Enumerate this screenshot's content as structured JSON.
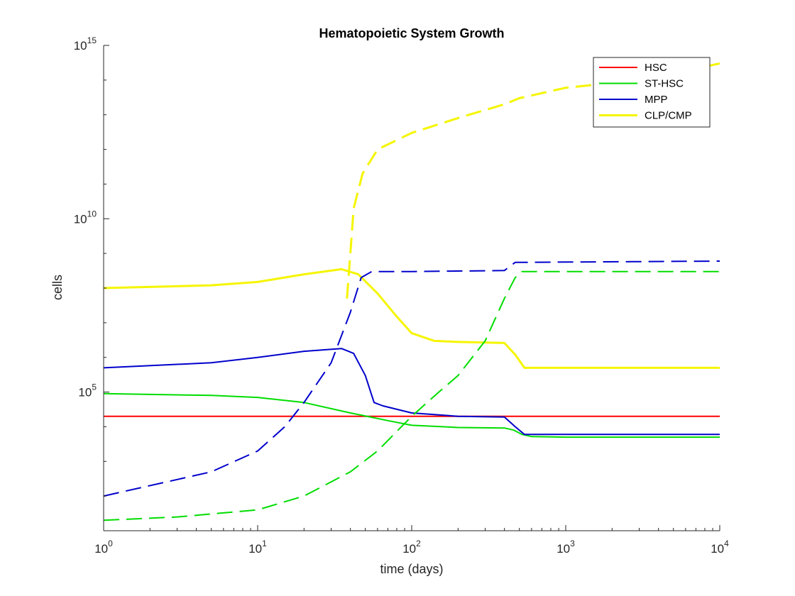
{
  "chart_data": {
    "type": "line",
    "title": "Hematopoietic System Growth",
    "xlabel": "time (days)",
    "ylabel": "cells",
    "xscale": "log",
    "yscale": "log",
    "xlim": [
      1,
      10000
    ],
    "ylim": [
      10,
      1000000000000000
    ],
    "x_ticks": [
      {
        "base": "10",
        "exp": "0",
        "value": 1
      },
      {
        "base": "10",
        "exp": "1",
        "value": 10
      },
      {
        "base": "10",
        "exp": "2",
        "value": 100
      },
      {
        "base": "10",
        "exp": "3",
        "value": 1000
      },
      {
        "base": "10",
        "exp": "4",
        "value": 10000
      }
    ],
    "y_ticks": [
      {
        "base": "10",
        "exp": "5",
        "value": 100000
      },
      {
        "base": "10",
        "exp": "10",
        "value": 10000000000
      },
      {
        "base": "10",
        "exp": "15",
        "value": 1000000000000000
      }
    ],
    "grid": false,
    "legend_position": "top-right",
    "legend": [
      {
        "label": "HSC",
        "color": "#ff0000"
      },
      {
        "label": "ST-HSC",
        "color": "#00dd00"
      },
      {
        "label": "MPP",
        "color": "#0000cc"
      },
      {
        "label": "CLP/CMP",
        "color": "#f5f500"
      }
    ],
    "series": [
      {
        "name": "HSC",
        "color": "#ff0000",
        "style": "solid",
        "points": [
          [
            1,
            20000
          ],
          [
            10000,
            20000
          ]
        ]
      },
      {
        "name": "ST-HSC",
        "color": "#00dd00",
        "style": "solid",
        "points": [
          [
            1,
            90000
          ],
          [
            5,
            80000
          ],
          [
            10,
            70000
          ],
          [
            20,
            50000
          ],
          [
            40,
            25000
          ],
          [
            70,
            15000
          ],
          [
            100,
            11000
          ],
          [
            200,
            9500
          ],
          [
            400,
            9200
          ],
          [
            460,
            8000
          ],
          [
            520,
            6000
          ],
          [
            600,
            5200
          ],
          [
            1000,
            5000
          ],
          [
            10000,
            5000
          ]
        ]
      },
      {
        "name": "MPP",
        "color": "#0000cc",
        "style": "solid",
        "points": [
          [
            1,
            500000
          ],
          [
            5,
            700000
          ],
          [
            10,
            1000000
          ],
          [
            20,
            1500000
          ],
          [
            35,
            1800000
          ],
          [
            42,
            1300000
          ],
          [
            50,
            300000
          ],
          [
            57,
            50000
          ],
          [
            65,
            40000
          ],
          [
            100,
            25000
          ],
          [
            200,
            20000
          ],
          [
            400,
            19000
          ],
          [
            470,
            10000
          ],
          [
            540,
            6000
          ],
          [
            1000,
            6000
          ],
          [
            10000,
            6000
          ]
        ]
      },
      {
        "name": "CLP/CMP",
        "color": "#f5f500",
        "style": "solid",
        "points": [
          [
            1,
            100000000
          ],
          [
            5,
            120000000
          ],
          [
            10,
            150000000
          ],
          [
            20,
            250000000
          ],
          [
            35,
            350000000
          ],
          [
            45,
            250000000
          ],
          [
            60,
            70000000
          ],
          [
            80,
            15000000
          ],
          [
            100,
            5000000
          ],
          [
            140,
            3000000
          ],
          [
            200,
            2800000
          ],
          [
            400,
            2600000
          ],
          [
            470,
            1200000
          ],
          [
            540,
            500000
          ],
          [
            1000,
            500000
          ],
          [
            10000,
            500000
          ]
        ]
      },
      {
        "name": "ST-HSC (dashed)",
        "color": "#00dd00",
        "style": "dashed",
        "points": [
          [
            1,
            20
          ],
          [
            3,
            25
          ],
          [
            10,
            40
          ],
          [
            20,
            100
          ],
          [
            40,
            500
          ],
          [
            60,
            2000
          ],
          [
            100,
            20000
          ],
          [
            150,
            100000
          ],
          [
            200,
            300000
          ],
          [
            300,
            3000000
          ],
          [
            400,
            50000000
          ],
          [
            470,
            200000000
          ],
          [
            520,
            300000000
          ],
          [
            10000,
            300000000
          ]
        ]
      },
      {
        "name": "MPP (dashed)",
        "color": "#0000cc",
        "style": "dashed",
        "points": [
          [
            1,
            100
          ],
          [
            5,
            500
          ],
          [
            10,
            2000
          ],
          [
            15,
            10000
          ],
          [
            20,
            50000
          ],
          [
            30,
            700000
          ],
          [
            40,
            20000000
          ],
          [
            47,
            200000000
          ],
          [
            55,
            300000000
          ],
          [
            100,
            300000000
          ],
          [
            400,
            320000000
          ],
          [
            470,
            550000000
          ],
          [
            10000,
            600000000
          ]
        ]
      },
      {
        "name": "CLP/CMP (dashed)",
        "color": "#f5f500",
        "style": "dashed",
        "points": [
          [
            38,
            50000000
          ],
          [
            40,
            1000000000
          ],
          [
            42,
            20000000000
          ],
          [
            48,
            200000000000
          ],
          [
            60,
            1000000000000
          ],
          [
            100,
            3000000000000
          ],
          [
            200,
            8000000000000
          ],
          [
            400,
            20000000000000
          ],
          [
            500,
            30000000000000
          ],
          [
            1000,
            60000000000000
          ],
          [
            3000,
            100000000000000
          ],
          [
            10000,
            300000000000000
          ]
        ]
      }
    ]
  }
}
